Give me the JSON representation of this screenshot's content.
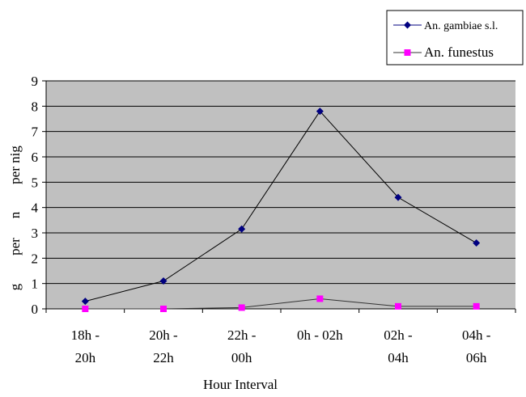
{
  "chart_data": {
    "type": "line",
    "title": "",
    "xlabel": "Hour Interval",
    "ylabel_fragments": [
      "g",
      "per",
      "n",
      "per nig"
    ],
    "categories": [
      [
        "18h -",
        "20h"
      ],
      [
        "20h -",
        "22h"
      ],
      [
        "22h -",
        "00h"
      ],
      [
        "0h - 02h"
      ],
      [
        "02h -",
        "04h"
      ],
      [
        "04h -",
        "06h"
      ]
    ],
    "ylim": [
      0,
      9
    ],
    "yticks": [
      0,
      1,
      2,
      3,
      4,
      5,
      6,
      7,
      8,
      9
    ],
    "grid": true,
    "plot_background": "#c0c0c0",
    "legend_position": "top-right",
    "series": [
      {
        "name": "An. gambiae s.l.",
        "values": [
          0.3,
          1.1,
          3.15,
          7.8,
          4.4,
          2.6
        ],
        "color": "#000080",
        "line_color": "#000000",
        "marker": "diamond"
      },
      {
        "name": "An. funestus",
        "values": [
          0.0,
          0.0,
          0.05,
          0.4,
          0.1,
          0.1
        ],
        "color": "#ff00ff",
        "line_color": "#333333",
        "marker": "square"
      }
    ]
  }
}
